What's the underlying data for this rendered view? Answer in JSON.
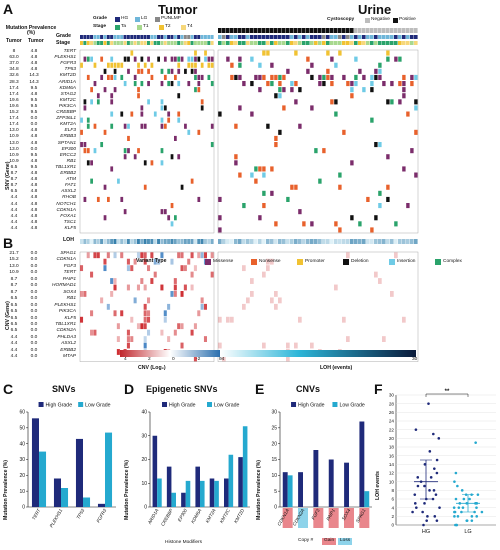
{
  "panels": {
    "A": "A",
    "B": "B",
    "C": "C",
    "D": "D",
    "E": "E",
    "F": "F"
  },
  "panelA": {
    "tumor_title": "Tumor",
    "urine_title": "Urine",
    "prev_header": "Mutation Prevalence (%)",
    "tumor_col": "Tumor",
    "urine_col": "Tumor",
    "grade_label": "Grade",
    "stage_label": "Stage",
    "legend_grade_label": "Grade",
    "legend_stage_label": "Stage",
    "grade_legend": [
      {
        "label": "HG",
        "color": "#1f2a7a"
      },
      {
        "label": "LG",
        "color": "#6fb6d9"
      },
      {
        "label": "PUNLMP",
        "color": "#888888"
      }
    ],
    "stage_legend": [
      {
        "label": "Ta",
        "color": "#2aa36b"
      },
      {
        "label": "T1",
        "color": "#a8d88e"
      },
      {
        "label": "T2",
        "color": "#f1c232"
      },
      {
        "label": "T4",
        "color": "#f6d77a"
      }
    ],
    "cysto_label": "Cystoscopy",
    "cysto_legend": [
      {
        "label": "Negative",
        "color": "#bdbdbd"
      },
      {
        "label": "Positive",
        "color": "#111111"
      }
    ],
    "axis_label": "SNV (Gene)",
    "genes": [
      "TERT",
      "PLEKHS1",
      "FGFR3",
      "TP53",
      "KMT2D",
      "ARID1A",
      "KDM6A",
      "STAG2",
      "KMT2C",
      "PIK3CA",
      "CREBBP",
      "ZFP36L1",
      "KMT2A",
      "ELF3",
      "ERBB3",
      "SPTAN1",
      "EP300",
      "ERCC2",
      "RB1",
      "TBL1XR1",
      "ERBB2",
      "ATM",
      "FAT1",
      "ASXL2",
      "RHOB",
      "NOTCH1",
      "CDKN1A",
      "FOXA1",
      "TSC1",
      "KLF5"
    ],
    "tumor_prev": [
      "8",
      "63.0",
      "37.0",
      "34.8",
      "32.6",
      "28.3",
      "17.4",
      "17.4",
      "19.6",
      "19.6",
      "15.2",
      "17.4",
      "17.4",
      "13.0",
      "10.9",
      "13.0",
      "13.0",
      "10.9",
      "10.9",
      "6.5",
      "8.7",
      "8.7",
      "8.7",
      "6.5",
      "4.4",
      "4.4",
      "4.4",
      "4.4",
      "4.4",
      "4.4"
    ],
    "urine_prev": [
      "4.8",
      "4.8",
      "4.8",
      "4.8",
      "14.3",
      "14.3",
      "9.5",
      "4.8",
      "9.5",
      "9.5",
      "9.5",
      "0.0",
      "0.0",
      "4.8",
      "4.8",
      "4.8",
      "0.0",
      "9.5",
      "4.8",
      "9.5",
      "4.8",
      "4.8",
      "4.8",
      "4.8",
      "4.8",
      "4.8",
      "4.8",
      "4.8",
      "4.8",
      "4.8"
    ]
  },
  "panelB": {
    "loh_label": "LOH",
    "axis_label": "CNV (Gene)",
    "variant_type_label": "Variant Type",
    "variant_types": [
      {
        "label": "Missense",
        "color": "#7b2d6b"
      },
      {
        "label": "Nonsense",
        "color": "#e8612c"
      },
      {
        "label": "Promoter",
        "color": "#f1c232"
      },
      {
        "label": "Deletion",
        "color": "#111111"
      },
      {
        "label": "Insertion",
        "color": "#6fcbe6"
      },
      {
        "label": "Complex",
        "color": "#2aa36b"
      }
    ],
    "genes": [
      "SPAG1",
      "CDKN1A",
      "FGF3",
      "TERT",
      "PAIP1",
      "HORMAD1",
      "SOX4",
      "RB1",
      "PLEKHS1",
      "PIK3CA",
      "KLF5",
      "TBL1XR1",
      "CDKN2A",
      "PHLDA3",
      "ASXL2",
      "ERBB2",
      "MTAP"
    ],
    "tumor_prev": [
      "21.7",
      "15.2",
      "13.0",
      "10.9",
      "8.7",
      "8.7",
      "8.7",
      "6.5",
      "6.5",
      "6.5",
      "6.5",
      "6.5",
      "6.5",
      "4.4",
      "4.4",
      "4.4",
      "4.4"
    ],
    "urine_prev": [
      "0.0",
      "0.0",
      "0.0",
      "0.0",
      "0.0",
      "0.0",
      "0.0",
      "0.0",
      "0.0",
      "0.0",
      "0.0",
      "0.0",
      "0.0",
      "0.0",
      "0.0",
      "0.0",
      "0.0"
    ],
    "cnv_scale_label": "CNV (Log₂)",
    "cnv_ticks": [
      "4",
      "2",
      "0",
      "-2",
      "-4"
    ],
    "loh_scale_label": "LOH (events)",
    "loh_ticks": [
      "0",
      "30"
    ]
  },
  "panelC": {
    "title": "SNVs",
    "legend": [
      "High Grade",
      "Low Grade"
    ],
    "ylabel": "Mutation Prevalence (%)"
  },
  "panelD": {
    "title": "Epigenetic SNVs",
    "legend": [
      "High Grade",
      "Low Grade"
    ],
    "ylabel": "Mutation Prevalence (%)",
    "group_label": "Histone Modifiers"
  },
  "panelE": {
    "title": "CNVs",
    "legend": [
      "High Grade",
      "Low Grade"
    ],
    "ylabel": "Mutation Prevalence (%)",
    "copy_label": "Copy #",
    "gain_label": "Gain",
    "loss_label": "Loss"
  },
  "panelF": {
    "ylabel": "LOH events",
    "sig": "**"
  },
  "colors": {
    "hg": "#1f2a7a",
    "lg": "#25a9cf",
    "missense": "#7b2d6b",
    "nonsense": "#e8612c",
    "promoter": "#f1c232",
    "deletion": "#111111",
    "insertion": "#6fcbe6",
    "complex": "#2aa36b"
  },
  "chart_data": [
    {
      "type": "bar",
      "title": "SNVs",
      "xlabel": "",
      "ylabel": "Mutation Prevalence (%)",
      "ylim": [
        0,
        60
      ],
      "yticks": [
        0,
        10,
        20,
        30,
        40,
        50,
        60
      ],
      "categories": [
        "TERT",
        "PLEKHS1",
        "TP53",
        "FGFR3"
      ],
      "series": [
        {
          "name": "High Grade",
          "values": [
            56,
            18,
            43,
            2
          ]
        },
        {
          "name": "Low Grade",
          "values": [
            35,
            12,
            6,
            47
          ]
        }
      ]
    },
    {
      "type": "bar",
      "title": "Epigenetic SNVs",
      "xlabel": "",
      "ylabel": "Mutation Prevalence (%)",
      "ylim": [
        0,
        40
      ],
      "yticks": [
        0,
        10,
        20,
        30,
        40
      ],
      "categories": [
        "ARID1A",
        "CREBBP",
        "EP300",
        "KDM6A",
        "KMT2A",
        "KMT2C",
        "KMT2D"
      ],
      "series": [
        {
          "name": "High Grade",
          "values": [
            30,
            17,
            6,
            17,
            12,
            12,
            21
          ]
        },
        {
          "name": "Low Grade",
          "values": [
            12,
            6,
            11,
            11,
            11,
            22,
            34
          ]
        }
      ]
    },
    {
      "type": "bar",
      "title": "CNVs",
      "xlabel": "",
      "ylabel": "Mutation Prevalence (%)",
      "ylim": [
        0,
        30
      ],
      "yticks": [
        0,
        5,
        10,
        15,
        20,
        25,
        30
      ],
      "categories": [
        "CDKN1A",
        "CDKN2A",
        "FGF3",
        "PAIP1",
        "SOX4",
        "SPAG1"
      ],
      "series": [
        {
          "name": "High Grade",
          "values": [
            11,
            11,
            18,
            15,
            14,
            27
          ]
        },
        {
          "name": "Low Grade",
          "values": [
            10,
            0,
            0,
            0,
            0,
            5
          ]
        }
      ]
    },
    {
      "type": "scatter",
      "title": "",
      "xlabel": "",
      "ylabel": "LOH events",
      "ylim": [
        0,
        30
      ],
      "yticks": [
        0,
        2,
        4,
        6,
        8,
        10,
        12,
        14,
        16,
        18,
        20,
        22,
        24,
        26,
        28,
        30
      ],
      "categories": [
        "HG",
        "LG"
      ],
      "series": [
        {
          "name": "HG",
          "values": [
            0,
            1,
            1,
            2,
            2,
            3,
            3,
            4,
            4,
            5,
            5,
            6,
            6,
            7,
            7,
            8,
            8,
            9,
            9,
            10,
            11,
            11,
            12,
            13,
            14,
            15,
            17,
            20,
            21,
            22,
            28
          ]
        },
        {
          "name": "LG",
          "values": [
            0,
            0,
            0,
            1,
            1,
            1,
            2,
            2,
            2,
            2,
            3,
            3,
            3,
            3,
            3,
            4,
            4,
            4,
            4,
            5,
            5,
            5,
            5,
            5,
            6,
            6,
            6,
            7,
            7,
            7,
            8,
            9,
            10,
            12,
            19
          ]
        }
      ],
      "summary": [
        {
          "name": "HG",
          "mean": 10,
          "sd_low": 6,
          "sd_high": 15
        },
        {
          "name": "LG",
          "mean": 5,
          "sd_low": 3,
          "sd_high": 7
        }
      ]
    }
  ]
}
